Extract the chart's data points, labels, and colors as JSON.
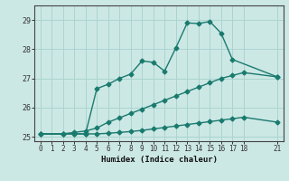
{
  "xlabel": "Humidex (Indice chaleur)",
  "background_color": "#cce8e5",
  "grid_color": "#aad4d0",
  "line_color": "#1a7a6e",
  "xlim": [
    -0.5,
    21.5
  ],
  "ylim": [
    24.85,
    29.5
  ],
  "yticks": [
    25,
    26,
    27,
    28,
    29
  ],
  "xticks": [
    0,
    1,
    2,
    3,
    4,
    5,
    6,
    7,
    8,
    9,
    10,
    11,
    12,
    13,
    14,
    15,
    16,
    17,
    18,
    21
  ],
  "line_flat_x": [
    0,
    2,
    3,
    4,
    5,
    6,
    7,
    8,
    9,
    10,
    11,
    12,
    13,
    14,
    15,
    16,
    17,
    18,
    21
  ],
  "line_flat_y": [
    25.1,
    25.1,
    25.1,
    25.1,
    25.1,
    25.12,
    25.15,
    25.18,
    25.22,
    25.27,
    25.32,
    25.37,
    25.42,
    25.47,
    25.52,
    25.57,
    25.62,
    25.67,
    25.5
  ],
  "line_diag_x": [
    0,
    2,
    3,
    4,
    5,
    6,
    7,
    8,
    9,
    10,
    11,
    12,
    13,
    14,
    15,
    16,
    17,
    18,
    21
  ],
  "line_diag_y": [
    25.1,
    25.1,
    25.15,
    25.2,
    25.3,
    25.5,
    25.65,
    25.8,
    25.95,
    26.1,
    26.25,
    26.4,
    26.55,
    26.7,
    26.85,
    27.0,
    27.1,
    27.2,
    27.05
  ],
  "line_peak_x": [
    0,
    2,
    3,
    4,
    5,
    6,
    7,
    8,
    9,
    10,
    11,
    12,
    13,
    14,
    15,
    16,
    17,
    21
  ],
  "line_peak_y": [
    25.1,
    25.1,
    25.1,
    25.1,
    26.65,
    26.8,
    27.0,
    27.15,
    27.6,
    27.55,
    27.25,
    28.05,
    28.9,
    28.88,
    28.95,
    28.55,
    27.65,
    27.05
  ],
  "marker": "D",
  "markersize": 2.5,
  "linewidth": 1.0
}
